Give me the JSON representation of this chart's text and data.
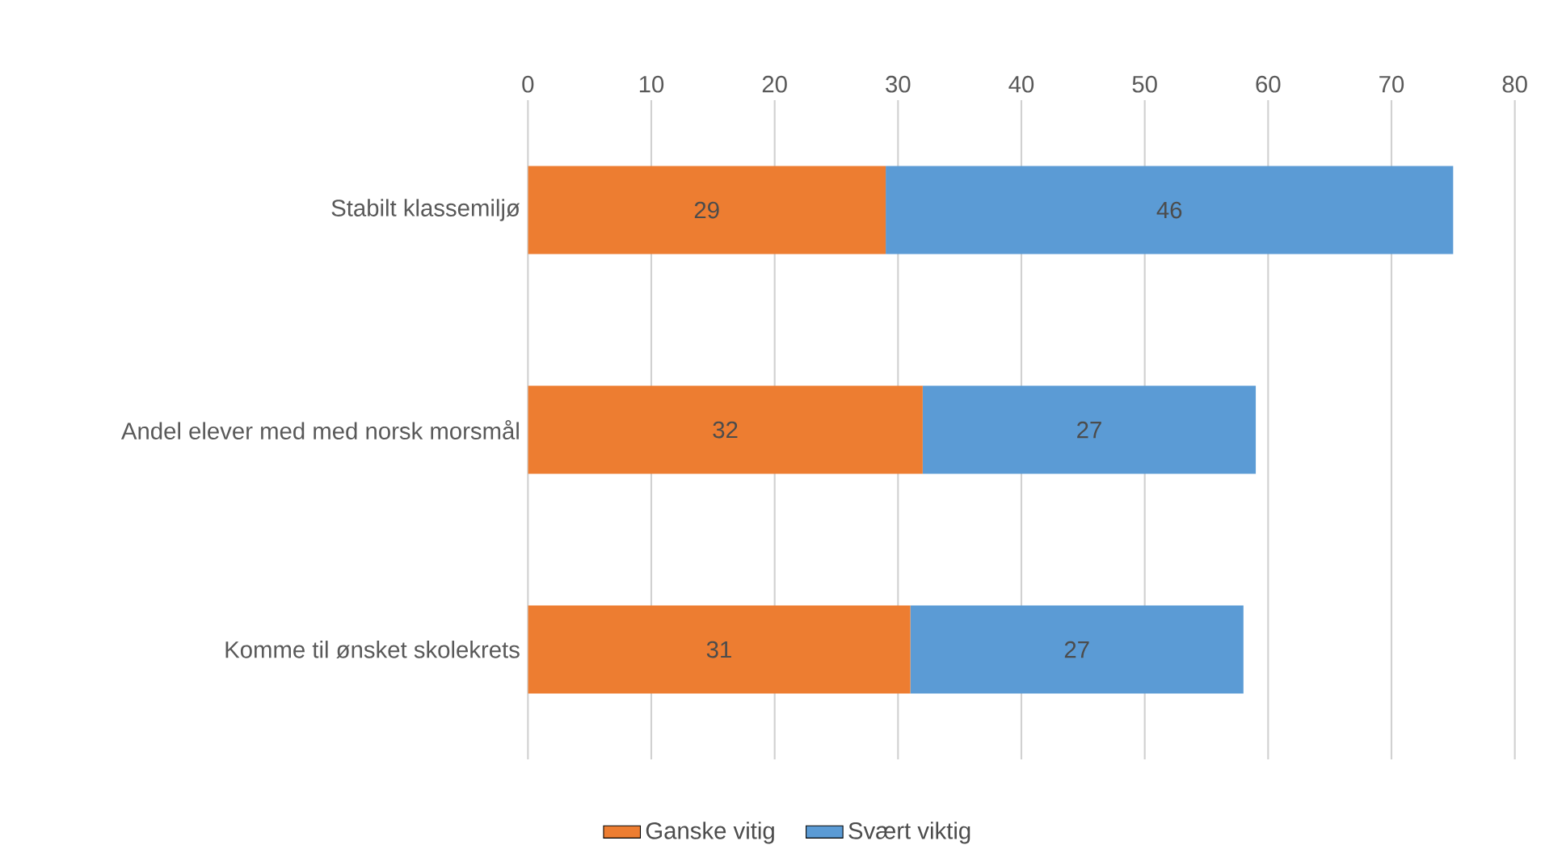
{
  "chart_data": {
    "type": "bar",
    "orientation": "horizontal",
    "stacked": true,
    "categories": [
      "Stabilt klassemiljø",
      "Andel elever med med norsk morsmål",
      "Komme til ønsket skolekrets"
    ],
    "series": [
      {
        "name": "Ganske vitig",
        "color": "#ed7d31",
        "values": [
          29,
          32,
          31
        ]
      },
      {
        "name": "Svært viktig",
        "color": "#5b9bd5",
        "values": [
          46,
          27,
          27
        ]
      }
    ],
    "xlim": [
      0,
      80
    ],
    "xticks": [
      0,
      10,
      20,
      30,
      40,
      50,
      60,
      70,
      80
    ],
    "grid": "x",
    "legend": "bottom",
    "data_labels": true
  }
}
